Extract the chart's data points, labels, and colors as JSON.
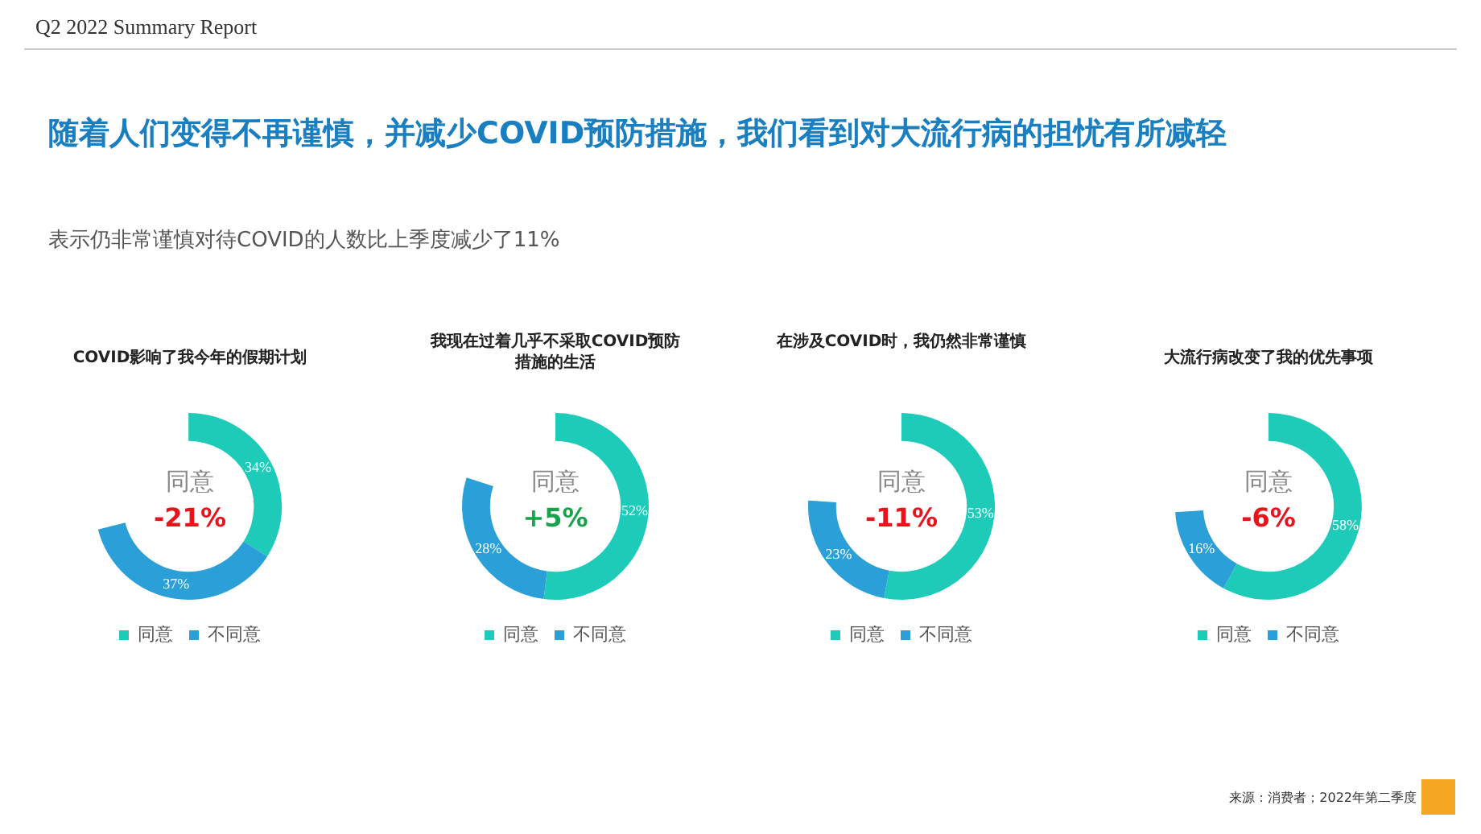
{
  "chart_data": [
    {
      "type": "other",
      "title": "随着人们变得不再谨慎，并减少COVID预防措施，我们看到对大流行病的担忧有所减轻",
      "subtitle": "表示仍非常谨慎对待COVID的人数比上季度减少了11%",
      "annotations": [
        "Q2 2022 Summary Report",
        "来源：消费者；2022年第二季度"
      ]
    },
    {
      "type": "donut",
      "title": "COVID影响了我今年的假期计划",
      "categories": [
        "同意",
        "不同意"
      ],
      "values": [
        34,
        37
      ],
      "colors": [
        "#1ecbb9",
        "#2a9fd8"
      ],
      "value_labels": [
        "34%",
        "37%"
      ],
      "legend": "bottom",
      "annotations": [
        "同意",
        "-21%"
      ]
    },
    {
      "type": "donut",
      "title": "我现在过着几乎不采取COVID预防措施的生活",
      "categories": [
        "同意",
        "不同意"
      ],
      "values": [
        52,
        28
      ],
      "colors": [
        "#1ecbb9",
        "#2a9fd8"
      ],
      "value_labels": [
        "52%",
        "28%"
      ],
      "legend": "bottom",
      "annotations": [
        "同意",
        "+5%"
      ]
    },
    {
      "type": "donut",
      "title": "在涉及COVID时，我仍然非常谨慎",
      "categories": [
        "同意",
        "不同意"
      ],
      "values": [
        53,
        23
      ],
      "colors": [
        "#1ecbb9",
        "#2a9fd8"
      ],
      "value_labels": [
        "53%",
        "23%"
      ],
      "legend": "bottom",
      "annotations": [
        "同意",
        "-11%"
      ]
    },
    {
      "type": "donut",
      "title": "大流行病改变了我的优先事项",
      "categories": [
        "同意",
        "不同意"
      ],
      "values": [
        58,
        16
      ],
      "colors": [
        "#1ecbb9",
        "#2a9fd8"
      ],
      "value_labels": [
        "58%",
        "16%"
      ],
      "legend": "bottom",
      "annotations": [
        "同意",
        "-6%"
      ]
    }
  ]
}
